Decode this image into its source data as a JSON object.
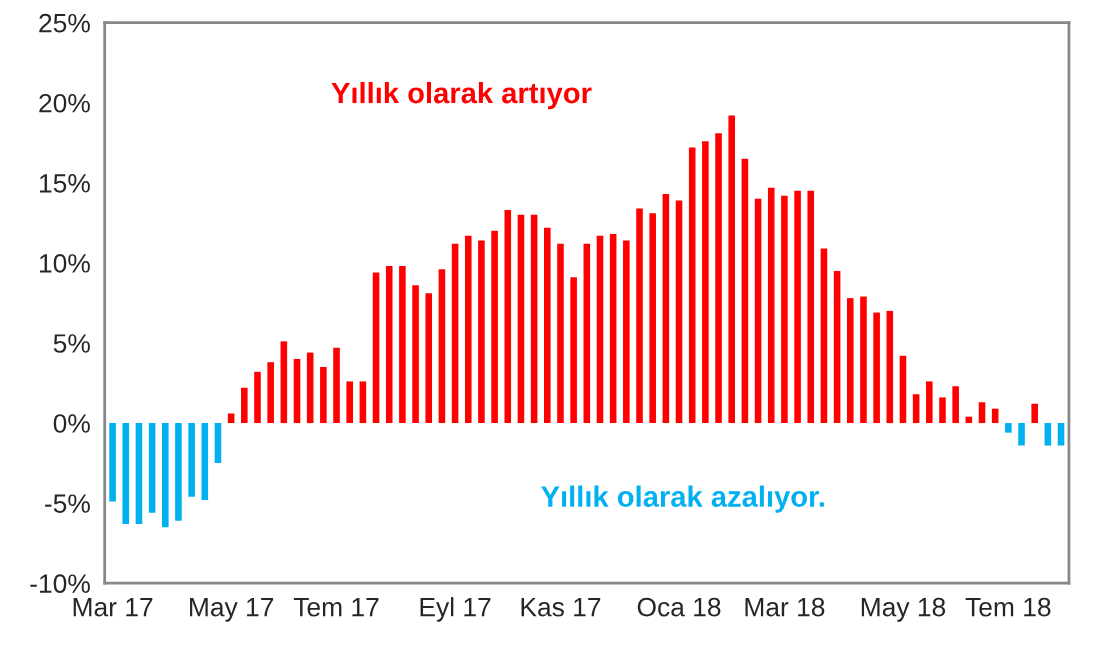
{
  "chart_data": {
    "type": "bar",
    "categories": [
      "Mar 17",
      null,
      null,
      null,
      null,
      null,
      null,
      null,
      null,
      "May 17",
      null,
      null,
      null,
      null,
      null,
      null,
      null,
      "Tem 17",
      null,
      null,
      null,
      null,
      null,
      null,
      null,
      null,
      "Eyl 17",
      null,
      null,
      null,
      null,
      null,
      null,
      null,
      "Kas 17",
      null,
      null,
      null,
      null,
      null,
      null,
      null,
      null,
      "Oca 18",
      null,
      null,
      null,
      null,
      null,
      null,
      null,
      "Mar 18",
      null,
      null,
      null,
      null,
      null,
      null,
      null,
      null,
      "May 18",
      null,
      null,
      null,
      null,
      null,
      null,
      null,
      "Tem 18",
      null,
      null,
      null,
      null
    ],
    "values": [
      -4.9,
      -6.3,
      -6.3,
      -5.6,
      -6.5,
      -6.1,
      -4.6,
      -4.8,
      -2.5,
      0.6,
      2.2,
      3.2,
      3.8,
      5.1,
      4.0,
      4.4,
      3.5,
      4.7,
      2.6,
      2.6,
      9.4,
      9.8,
      9.8,
      8.6,
      8.1,
      9.6,
      11.2,
      11.7,
      11.4,
      12.0,
      13.3,
      13.0,
      13.0,
      12.2,
      11.2,
      9.1,
      11.2,
      11.7,
      11.8,
      11.4,
      13.4,
      13.1,
      14.3,
      13.9,
      17.2,
      17.6,
      18.1,
      19.2,
      16.5,
      14.0,
      14.7,
      14.2,
      14.5,
      14.5,
      10.9,
      9.5,
      7.8,
      7.9,
      6.9,
      7.0,
      4.2,
      1.8,
      2.6,
      1.6,
      2.3,
      0.4,
      1.3,
      0.9,
      -0.6,
      -1.4,
      1.2,
      -1.4,
      -1.4
    ],
    "colors": [
      "#00b0f0",
      "#00b0f0",
      "#00b0f0",
      "#00b0f0",
      "#00b0f0",
      "#00b0f0",
      "#00b0f0",
      "#00b0f0",
      "#00b0f0",
      "#ff0000",
      "#ff0000",
      "#ff0000",
      "#ff0000",
      "#ff0000",
      "#ff0000",
      "#ff0000",
      "#ff0000",
      "#ff0000",
      "#ff0000",
      "#ff0000",
      "#ff0000",
      "#ff0000",
      "#ff0000",
      "#ff0000",
      "#ff0000",
      "#ff0000",
      "#ff0000",
      "#ff0000",
      "#ff0000",
      "#ff0000",
      "#ff0000",
      "#ff0000",
      "#ff0000",
      "#ff0000",
      "#ff0000",
      "#ff0000",
      "#ff0000",
      "#ff0000",
      "#ff0000",
      "#ff0000",
      "#ff0000",
      "#ff0000",
      "#ff0000",
      "#ff0000",
      "#ff0000",
      "#ff0000",
      "#ff0000",
      "#ff0000",
      "#ff0000",
      "#ff0000",
      "#ff0000",
      "#ff0000",
      "#ff0000",
      "#ff0000",
      "#ff0000",
      "#ff0000",
      "#ff0000",
      "#ff0000",
      "#ff0000",
      "#ff0000",
      "#ff0000",
      "#ff0000",
      "#ff0000",
      "#ff0000",
      "#ff0000",
      "#ff0000",
      "#ff0000",
      "#ff0000",
      "#00b0f0",
      "#00b0f0",
      "#ff0000",
      "#00b0f0",
      "#00b0f0"
    ],
    "ylim": [
      -10,
      25
    ],
    "yticks": [
      {
        "value": -10,
        "label": "-10%"
      },
      {
        "value": -5,
        "label": "-5%"
      },
      {
        "value": 0,
        "label": "0%"
      },
      {
        "value": 5,
        "label": "5%"
      },
      {
        "value": 10,
        "label": "10%"
      },
      {
        "value": 15,
        "label": "15%"
      },
      {
        "value": 20,
        "label": "20%"
      },
      {
        "value": 25,
        "label": "25%"
      }
    ],
    "annotations": [
      "Yıllık olarak artıyor",
      "Yıllık olarak azalıyor."
    ],
    "grid": false,
    "legend": false
  }
}
